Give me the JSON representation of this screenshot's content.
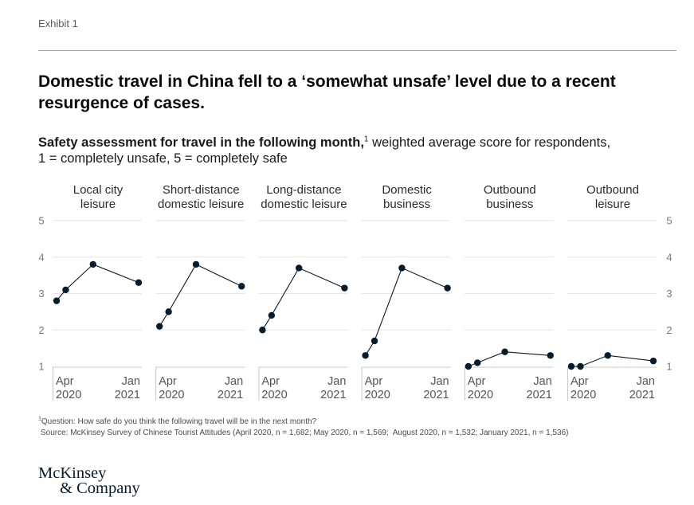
{
  "exhibit_label": "Exhibit 1",
  "title": "Domestic travel in China fell to a ‘somewhat unsafe’ level due to a recent resurgence of cases.",
  "subtitle": {
    "bold": "Safety assessment for travel in the following month,",
    "footnote_ref": "1",
    "regular": " weighted average score for respondents,",
    "line2": "1 = completely unsafe, 5 = completely safe"
  },
  "chart_data": {
    "type": "line",
    "x": [
      "2020-04",
      "2020-05",
      "2020-08",
      "2021-01"
    ],
    "x_tick_labels": [
      {
        "month": "Apr",
        "year": "2020"
      },
      {
        "month": "Jan",
        "year": "2021"
      }
    ],
    "y_ticks": [
      1,
      2,
      3,
      4,
      5
    ],
    "ylim": [
      1,
      5
    ],
    "grid": true,
    "panels": [
      {
        "title": [
          "Local city",
          "leisure"
        ],
        "values": [
          2.8,
          3.1,
          3.8,
          3.3
        ]
      },
      {
        "title": [
          "Short-distance",
          "domestic leisure"
        ],
        "values": [
          2.1,
          2.5,
          3.8,
          3.2
        ]
      },
      {
        "title": [
          "Long-distance",
          "domestic leisure"
        ],
        "values": [
          2.0,
          2.4,
          3.7,
          3.15
        ]
      },
      {
        "title": [
          "Domestic",
          "business"
        ],
        "values": [
          1.3,
          1.7,
          3.7,
          3.15
        ]
      },
      {
        "title": [
          "Outbound",
          "business"
        ],
        "values": [
          1.0,
          1.1,
          1.4,
          1.3
        ]
      },
      {
        "title": [
          "Outbound",
          "leisure"
        ],
        "values": [
          1.0,
          1.0,
          1.3,
          1.15
        ]
      }
    ],
    "line_color": "#051c2c",
    "grid_color": "#e6e6e6",
    "axis_color": "#c8c8c8"
  },
  "footnotes": {
    "note": {
      "ref": "1",
      "text": "Question: How safe do you think the following travel will be in the next month?"
    },
    "source": "Source: McKinsey Survey of Chinese Tourist Attitudes (April 2020, n = 1,682; May 2020, n = 1,569;  August 2020, n = 1,532; January 2021, n = 1,536)"
  },
  "logo": {
    "line1": "McKinsey",
    "line2": "& Company"
  }
}
